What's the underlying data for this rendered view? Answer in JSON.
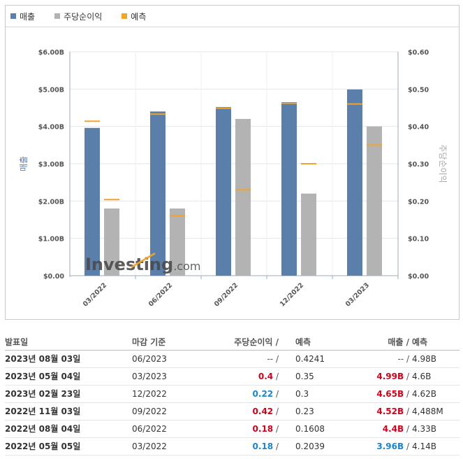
{
  "legend": {
    "items": [
      {
        "label": "매출",
        "color": "#5b7fab"
      },
      {
        "label": "주당순이익",
        "color": "#b3b3b3"
      },
      {
        "label": "예측",
        "color": "#f2a32c"
      }
    ]
  },
  "chart_data": {
    "type": "bar",
    "categories": [
      "03/2022",
      "06/2022",
      "09/2022",
      "12/2022",
      "03/2023"
    ],
    "series": [
      {
        "name": "매출",
        "axis": "left",
        "values": [
          3.96,
          4.4,
          4.52,
          4.65,
          4.99
        ],
        "color": "#5b7fab"
      },
      {
        "name": "주당순이익",
        "axis": "right",
        "values": [
          0.18,
          0.18,
          0.42,
          0.22,
          0.4
        ],
        "color": "#b3b3b3"
      }
    ],
    "forecasts": {
      "name": "예측",
      "color": "#f2a32c",
      "revenue": [
        4.14,
        4.33,
        4.488,
        4.62,
        4.6
      ],
      "eps": [
        0.2039,
        0.1608,
        0.23,
        0.3,
        0.35
      ]
    },
    "y_left": {
      "label": "매출",
      "ylim": [
        0,
        6
      ],
      "ticks": [
        "$0.00",
        "$1.00B",
        "$2.00B",
        "$3.00B",
        "$4.00B",
        "$5.00B",
        "$6.00B"
      ]
    },
    "y_right": {
      "label": "주당순이익",
      "ylim": [
        0,
        0.6
      ],
      "ticks": [
        "$0.00",
        "$0.10",
        "$0.20",
        "$0.30",
        "$0.40",
        "$0.50",
        "$0.60"
      ]
    },
    "grid": true,
    "watermark": "Investing.com"
  },
  "table": {
    "headers": {
      "date": "발표일",
      "period": "마감 기준",
      "eps": "주당순이익 /",
      "eps_forecast": "예측",
      "revenue": "매출 /",
      "revenue_forecast": "예측"
    },
    "rows": [
      {
        "date": "2023년 08월 03일",
        "period": "06/2023",
        "eps": "--",
        "eps_class": "neu",
        "eps_forecast": "0.4241",
        "revenue": "--",
        "revenue_class": "neu",
        "revenue_forecast": "4.98B"
      },
      {
        "date": "2023년 05월 04일",
        "period": "03/2023",
        "eps": "0.4",
        "eps_class": "pos",
        "eps_forecast": "0.35",
        "revenue": "4.99B",
        "revenue_class": "pos",
        "revenue_forecast": "4.6B"
      },
      {
        "date": "2023년 02월 23일",
        "period": "12/2022",
        "eps": "0.22",
        "eps_class": "neg",
        "eps_forecast": "0.3",
        "revenue": "4.65B",
        "revenue_class": "pos",
        "revenue_forecast": "4.62B"
      },
      {
        "date": "2022년 11월 03일",
        "period": "09/2022",
        "eps": "0.42",
        "eps_class": "pos",
        "eps_forecast": "0.23",
        "revenue": "4.52B",
        "revenue_class": "pos",
        "revenue_forecast": "4,488M"
      },
      {
        "date": "2022년 08월 04일",
        "period": "06/2022",
        "eps": "0.18",
        "eps_class": "pos",
        "eps_forecast": "0.1608",
        "revenue": "4.4B",
        "revenue_class": "pos",
        "revenue_forecast": "4.33B"
      },
      {
        "date": "2022년 05월 05일",
        "period": "03/2022",
        "eps": "0.18",
        "eps_class": "neg",
        "eps_forecast": "0.2039",
        "revenue": "3.96B",
        "revenue_class": "neg",
        "revenue_forecast": "4.14B"
      }
    ]
  }
}
